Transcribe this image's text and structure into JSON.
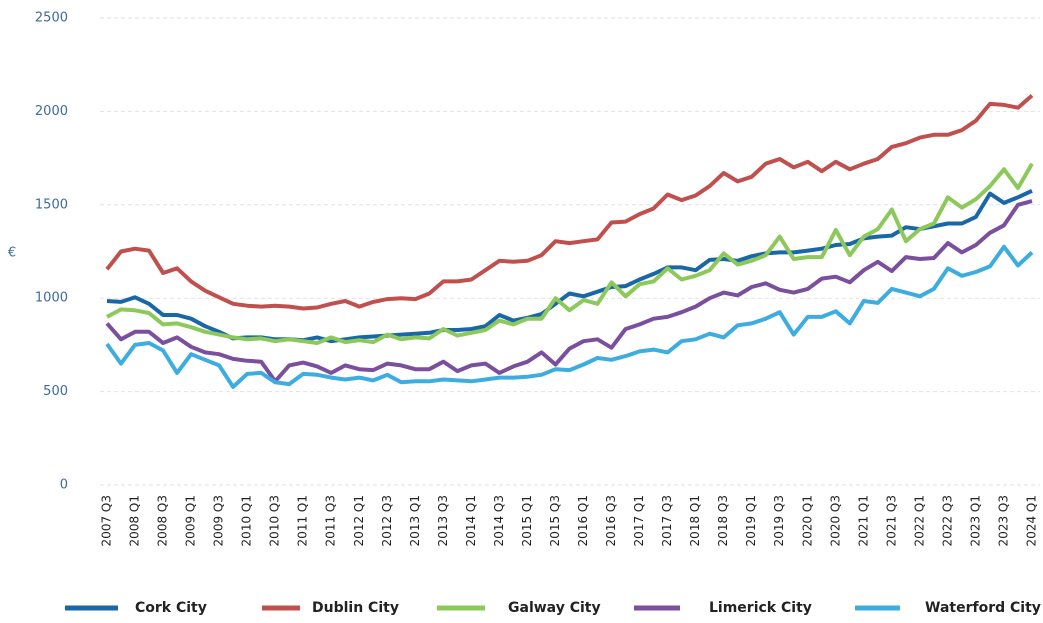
{
  "chart_data": {
    "type": "line",
    "y_label": "€",
    "categories": [
      "2007 Q3",
      null,
      "2008 Q1",
      null,
      "2008 Q3",
      null,
      "2009 Q1",
      null,
      "2009 Q3",
      null,
      "2010 Q1",
      null,
      "2010 Q3",
      null,
      "2011 Q1",
      null,
      "2011 Q3",
      null,
      "2012 Q1",
      null,
      "2012 Q3",
      null,
      "2013 Q1",
      null,
      "2013 Q3",
      null,
      "2014 Q1",
      null,
      "2014 Q3",
      null,
      "2015 Q1",
      null,
      "2015 Q3",
      null,
      "2016 Q1",
      null,
      "2016 Q3",
      null,
      "2017 Q1",
      null,
      "2017 Q3",
      null,
      "2018 Q1",
      null,
      "2018 Q3",
      null,
      "2019 Q1",
      null,
      "2019 Q3",
      null,
      "2020 Q1",
      null,
      "2020 Q3",
      null,
      "2021 Q1",
      null,
      "2021 Q3",
      null,
      "2022 Q1",
      null,
      "2022 Q3",
      null,
      "2023 Q1",
      null,
      "2023 Q3",
      null,
      "2024 Q1"
    ],
    "series": [
      {
        "name": "Cork City",
        "color": "#1a67a8",
        "values": [
          985,
          980,
          1005,
          970,
          910,
          910,
          890,
          850,
          820,
          785,
          790,
          790,
          780,
          780,
          775,
          790,
          770,
          780,
          790,
          795,
          800,
          805,
          810,
          815,
          830,
          830,
          835,
          850,
          910,
          880,
          895,
          915,
          970,
          1025,
          1010,
          1035,
          1060,
          1065,
          1100,
          1130,
          1165,
          1165,
          1150,
          1205,
          1210,
          1200,
          1225,
          1240,
          1245,
          1245,
          1255,
          1265,
          1285,
          1290,
          1320,
          1330,
          1335,
          1380,
          1370,
          1385,
          1400,
          1400,
          1435,
          1560,
          1510,
          1540,
          1575
        ]
      },
      {
        "name": "Dublin City",
        "color": "#c0504d",
        "values": [
          1155,
          1250,
          1265,
          1255,
          1135,
          1160,
          1090,
          1040,
          1005,
          970,
          960,
          955,
          960,
          955,
          945,
          950,
          970,
          985,
          955,
          980,
          995,
          1000,
          995,
          1025,
          1090,
          1090,
          1100,
          1150,
          1200,
          1195,
          1200,
          1230,
          1305,
          1295,
          1305,
          1315,
          1405,
          1410,
          1450,
          1480,
          1555,
          1525,
          1550,
          1600,
          1670,
          1625,
          1650,
          1720,
          1745,
          1700,
          1730,
          1680,
          1730,
          1690,
          1720,
          1745,
          1810,
          1830,
          1860,
          1875,
          1875,
          1900,
          1950,
          2040,
          2035,
          2020,
          2085
        ]
      },
      {
        "name": "Galway City",
        "color": "#8cc85a",
        "values": [
          900,
          940,
          935,
          920,
          860,
          865,
          845,
          820,
          805,
          790,
          780,
          785,
          770,
          780,
          770,
          760,
          790,
          765,
          775,
          765,
          805,
          780,
          790,
          785,
          835,
          800,
          815,
          830,
          880,
          860,
          890,
          890,
          1000,
          935,
          990,
          970,
          1085,
          1010,
          1075,
          1090,
          1160,
          1100,
          1120,
          1150,
          1240,
          1180,
          1200,
          1230,
          1330,
          1210,
          1220,
          1220,
          1365,
          1230,
          1330,
          1370,
          1475,
          1305,
          1370,
          1400,
          1540,
          1485,
          1530,
          1600,
          1690,
          1590,
          1720
        ]
      },
      {
        "name": "Limerick City",
        "color": "#7a4f9e",
        "values": [
          865,
          780,
          820,
          820,
          760,
          790,
          740,
          710,
          700,
          675,
          665,
          660,
          555,
          640,
          655,
          635,
          600,
          640,
          620,
          615,
          650,
          640,
          620,
          620,
          660,
          610,
          640,
          650,
          600,
          635,
          660,
          710,
          645,
          730,
          770,
          780,
          735,
          835,
          860,
          890,
          900,
          925,
          955,
          1000,
          1030,
          1015,
          1060,
          1080,
          1045,
          1030,
          1050,
          1105,
          1115,
          1085,
          1150,
          1195,
          1145,
          1220,
          1210,
          1215,
          1295,
          1245,
          1285,
          1350,
          1390,
          1500,
          1520
        ]
      },
      {
        "name": "Waterford City",
        "color": "#3dade0",
        "values": [
          755,
          650,
          750,
          760,
          720,
          600,
          700,
          670,
          640,
          525,
          595,
          600,
          550,
          540,
          595,
          590,
          575,
          565,
          575,
          560,
          590,
          550,
          555,
          555,
          565,
          560,
          555,
          565,
          575,
          575,
          580,
          590,
          620,
          615,
          645,
          680,
          670,
          690,
          715,
          725,
          710,
          770,
          780,
          810,
          790,
          855,
          865,
          890,
          925,
          805,
          900,
          900,
          930,
          865,
          985,
          975,
          1050,
          1030,
          1010,
          1050,
          1160,
          1120,
          1140,
          1170,
          1275,
          1175,
          1245
        ]
      }
    ],
    "ylim": [
      0,
      2500
    ],
    "yticks": [
      0,
      500,
      1000,
      1500,
      2000,
      2500
    ],
    "grid": true,
    "legend": "bottom"
  }
}
